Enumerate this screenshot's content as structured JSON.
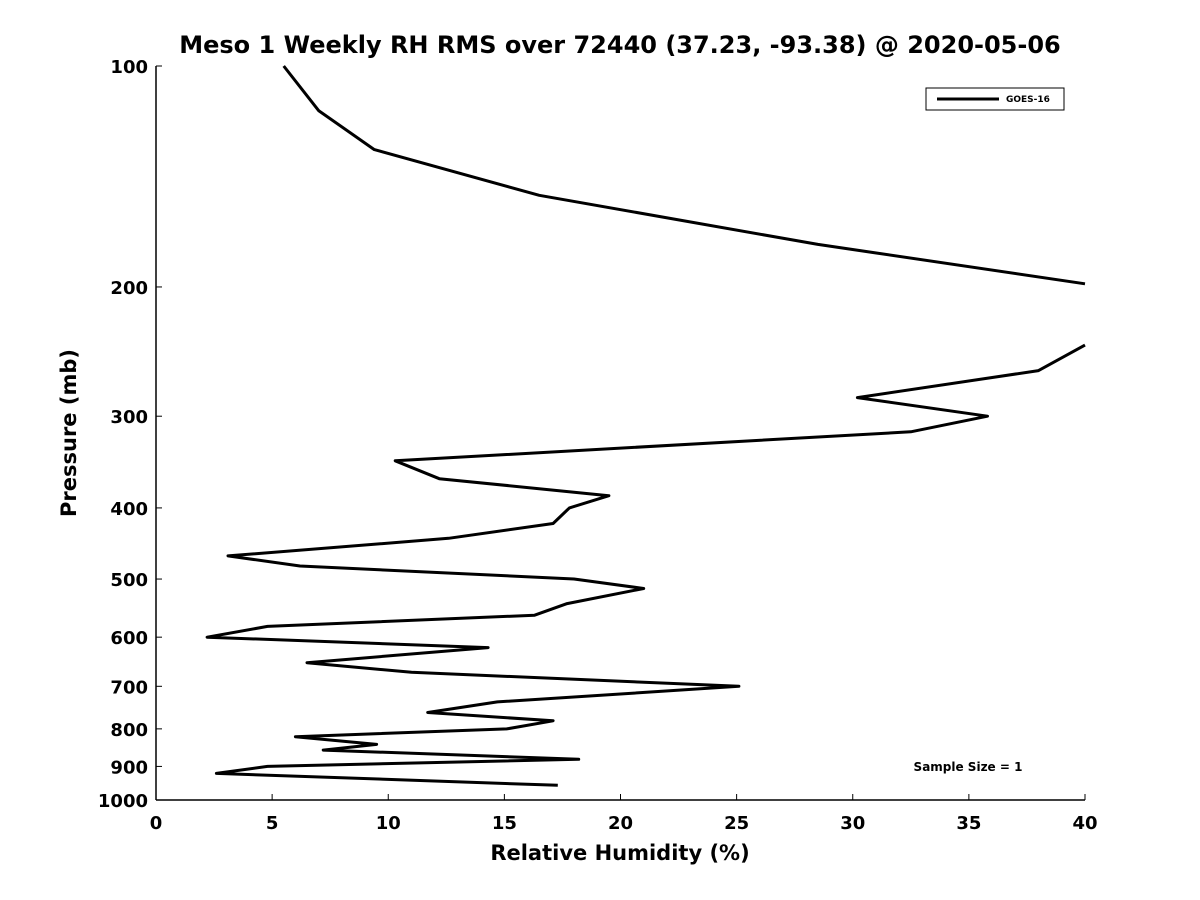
{
  "chart_data": {
    "type": "line",
    "title": "Meso 1 Weekly RH RMS over 72440 (37.23, -93.38) @ 2020-05-06",
    "xlabel": "Relative Humidity (%)",
    "ylabel": "Pressure (mb)",
    "xlim": [
      0,
      40
    ],
    "ylim": [
      100,
      1000
    ],
    "y_scale": "log",
    "y_direction": "reversed",
    "x_ticks": [
      "0",
      "5",
      "10",
      "15",
      "20",
      "25",
      "30",
      "35",
      "40"
    ],
    "y_ticks": [
      "100",
      "200",
      "300",
      "400",
      "500",
      "600",
      "700",
      "800",
      "900",
      "1000"
    ],
    "grid": false,
    "legend_position": "top-right",
    "annotation": "Sample Size = 1",
    "series": [
      {
        "name": "GOES-16",
        "color": "#000000",
        "x": [
          5.5,
          7.0,
          9.4,
          16.5,
          28.5,
          40.0,
          null,
          40.0,
          38.0,
          30.2,
          35.8,
          32.5,
          10.3,
          12.2,
          19.5,
          17.8,
          17.1,
          12.6,
          3.1,
          6.2,
          18.0,
          21.0,
          17.7,
          16.3,
          4.8,
          2.2,
          14.3,
          6.5,
          11.0,
          25.1,
          14.7,
          11.7,
          17.1,
          15.1,
          6.0,
          9.5,
          7.2,
          18.2,
          4.8,
          2.6,
          17.3
        ],
        "y": [
          100,
          115,
          130,
          150,
          175,
          198,
          null,
          240,
          260,
          283,
          300,
          315,
          345,
          365,
          385,
          400,
          420,
          440,
          465,
          480,
          500,
          515,
          540,
          560,
          580,
          600,
          620,
          650,
          670,
          700,
          735,
          760,
          780,
          800,
          820,
          840,
          855,
          880,
          900,
          920,
          955
        ]
      }
    ]
  }
}
